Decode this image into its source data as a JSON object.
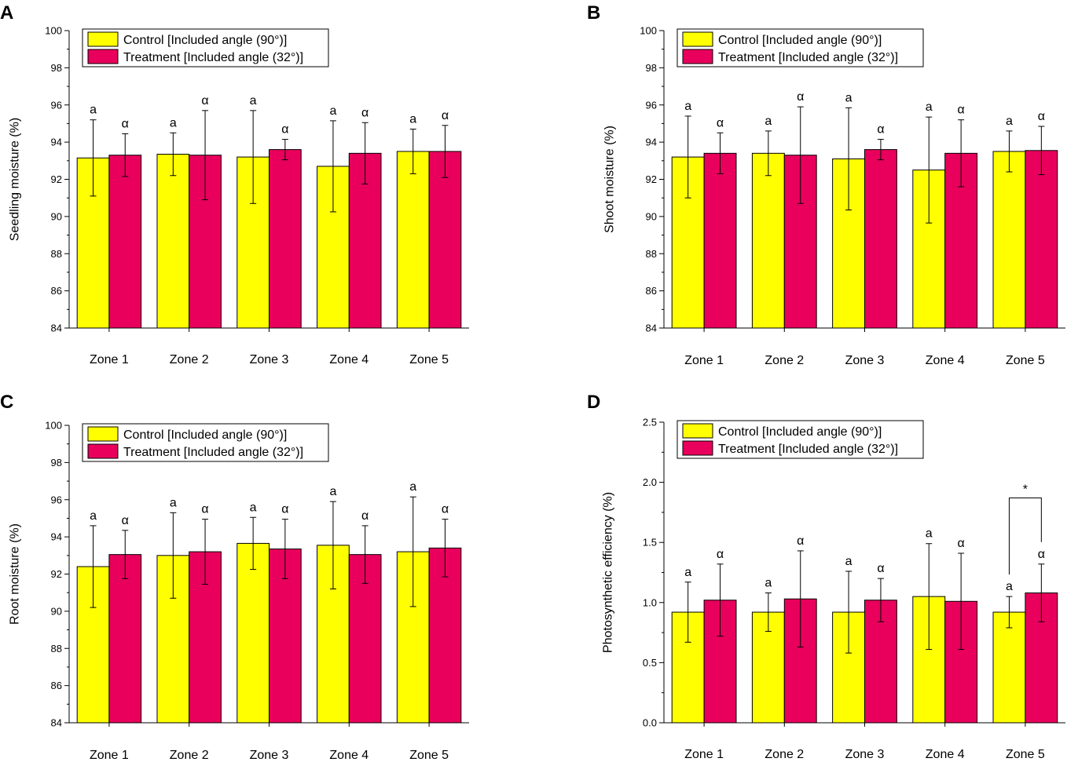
{
  "colors": {
    "control": "#FFFF00",
    "treatment": "#E8005C",
    "axis": "#000000"
  },
  "legend": {
    "control": "Control [Included angle (90°)]",
    "treatment": "Treatment [Included angle (32°)]"
  },
  "chart_data": [
    {
      "panel": "A",
      "type": "bar",
      "ylabel": "Seedling moisture (%)",
      "ylim": [
        84,
        100
      ],
      "yticks": [
        "84",
        "86",
        "88",
        "90",
        "92",
        "94",
        "96",
        "98",
        "100"
      ],
      "categories": [
        "Zone 1",
        "Zone 2",
        "Zone 3",
        "Zone 4",
        "Zone 5"
      ],
      "series": [
        {
          "name": "Control [Included angle (90°)]",
          "values": [
            93.15,
            93.35,
            93.2,
            92.7,
            93.5
          ],
          "errors": [
            2.05,
            1.15,
            2.5,
            2.45,
            1.2
          ],
          "letters": [
            "a",
            "a",
            "a",
            "a",
            "a"
          ]
        },
        {
          "name": "Treatment [Included angle (32°)]",
          "values": [
            93.3,
            93.3,
            93.6,
            93.4,
            93.5
          ],
          "errors": [
            1.15,
            2.4,
            0.55,
            1.65,
            1.4
          ],
          "letters": [
            "α",
            "α",
            "α",
            "α",
            "α"
          ]
        }
      ],
      "legend_position": "top-left"
    },
    {
      "panel": "B",
      "type": "bar",
      "ylabel": "Shoot moisture (%)",
      "ylim": [
        84,
        100
      ],
      "yticks": [
        "84",
        "86",
        "88",
        "90",
        "92",
        "94",
        "96",
        "98",
        "100"
      ],
      "categories": [
        "Zone 1",
        "Zone 2",
        "Zone 3",
        "Zone 4",
        "Zone 5"
      ],
      "series": [
        {
          "name": "Control [Included angle (90°)]",
          "values": [
            93.2,
            93.4,
            93.1,
            92.5,
            93.5
          ],
          "errors": [
            2.2,
            1.2,
            2.75,
            2.85,
            1.1
          ],
          "letters": [
            "a",
            "a",
            "a",
            "a",
            "a"
          ]
        },
        {
          "name": "Treatment [Included angle (32°)]",
          "values": [
            93.4,
            93.3,
            93.6,
            93.4,
            93.55
          ],
          "errors": [
            1.1,
            2.6,
            0.55,
            1.8,
            1.3
          ],
          "letters": [
            "α",
            "α",
            "α",
            "α",
            "α"
          ]
        }
      ],
      "legend_position": "top-left"
    },
    {
      "panel": "C",
      "type": "bar",
      "ylabel": "Root moisture (%)",
      "ylim": [
        84,
        100
      ],
      "yticks": [
        "84",
        "86",
        "88",
        "90",
        "92",
        "94",
        "96",
        "98",
        "100"
      ],
      "categories": [
        "Zone 1",
        "Zone 2",
        "Zone 3",
        "Zone 4",
        "Zone 5"
      ],
      "series": [
        {
          "name": "Control [Included angle (90°)]",
          "values": [
            92.4,
            93.0,
            93.65,
            93.55,
            93.2
          ],
          "errors": [
            2.2,
            2.3,
            1.4,
            2.35,
            2.95
          ],
          "letters": [
            "a",
            "a",
            "a",
            "a",
            "a"
          ]
        },
        {
          "name": "Treatment [Included angle (32°)]",
          "values": [
            93.05,
            93.2,
            93.35,
            93.05,
            93.4
          ],
          "errors": [
            1.3,
            1.75,
            1.6,
            1.55,
            1.55
          ],
          "letters": [
            "α",
            "α",
            "α",
            "α",
            "α"
          ]
        }
      ],
      "legend_position": "top-left"
    },
    {
      "panel": "D",
      "type": "bar",
      "ylabel": "Photosynthetic efficiency (%)",
      "ylim": [
        0,
        2.5
      ],
      "yticks": [
        "0.0",
        "0.5",
        "1.0",
        "1.5",
        "2.0",
        "2.5"
      ],
      "categories": [
        "Zone 1",
        "Zone 2",
        "Zone 3",
        "Zone 4",
        "Zone 5"
      ],
      "series": [
        {
          "name": "Control [Included angle (90°)]",
          "values": [
            0.92,
            0.92,
            0.92,
            1.05,
            0.92
          ],
          "errors": [
            0.25,
            0.16,
            0.34,
            0.44,
            0.13
          ],
          "letters": [
            "a",
            "a",
            "a",
            "a",
            "a"
          ]
        },
        {
          "name": "Treatment [Included angle (32°)]",
          "values": [
            1.02,
            1.03,
            1.02,
            1.01,
            1.08
          ],
          "errors": [
            0.3,
            0.4,
            0.18,
            0.4,
            0.24
          ],
          "letters": [
            "α",
            "α",
            "α",
            "α",
            "α"
          ]
        }
      ],
      "significance": {
        "category": "Zone 5",
        "label": "*"
      },
      "legend_position": "top-left"
    }
  ]
}
